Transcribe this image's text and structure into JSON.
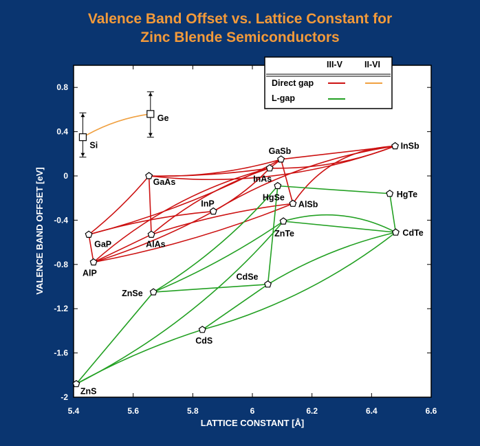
{
  "chart_data": {
    "type": "scatter",
    "title_line1": "Valence Band Offset vs. Lattice Constant for",
    "title_line2": "Zinc Blende Semiconductors",
    "xlabel": "LATTICE CONSTANT [Å]",
    "ylabel": "VALENCE BAND OFFSET [eV]",
    "xlim": [
      5.4,
      6.6
    ],
    "ylim": [
      -2,
      1.0
    ],
    "xticks": [
      5.4,
      5.6,
      5.8,
      6,
      6.2,
      6.4,
      6.6
    ],
    "xtick_labels": [
      "5.4",
      "5.6",
      "5.8",
      "6",
      "6.2",
      "6.4",
      "6.6"
    ],
    "yticks": [
      0.8,
      0.4,
      0,
      -0.4,
      -0.8,
      -1.2,
      -1.6,
      -2
    ],
    "ytick_labels": [
      "0.8",
      "0.4",
      "0",
      "-0.4",
      "-0.8",
      "-1.2",
      "-1.6",
      "-2"
    ],
    "legend": {
      "placement": "top-right",
      "col_headers": [
        "III-V",
        "II-VI"
      ],
      "rows": [
        {
          "label": "Direct gap",
          "colors": [
            "#cc1111",
            "#f0a040"
          ]
        },
        {
          "label": "L-gap",
          "colors": [
            "#22a022",
            null
          ]
        }
      ]
    },
    "colors": {
      "direct_iii_v": "#cc1111",
      "direct_ii_vi": "#f0a040",
      "l_gap": "#22a022"
    },
    "points": [
      {
        "name": "Si",
        "x": 5.431,
        "y": 0.35,
        "marker": "square",
        "error": [
          0.17,
          0.57
        ]
      },
      {
        "name": "Ge",
        "x": 5.658,
        "y": 0.56,
        "marker": "square",
        "error": [
          0.35,
          0.76
        ]
      },
      {
        "name": "GaAs",
        "x": 5.653,
        "y": 0.0
      },
      {
        "name": "GaP",
        "x": 5.451,
        "y": -0.53
      },
      {
        "name": "AlAs",
        "x": 5.661,
        "y": -0.53
      },
      {
        "name": "AlP",
        "x": 5.467,
        "y": -0.78
      },
      {
        "name": "InP",
        "x": 5.869,
        "y": -0.32
      },
      {
        "name": "InAs",
        "x": 6.058,
        "y": 0.07
      },
      {
        "name": "GaSb",
        "x": 6.096,
        "y": 0.15
      },
      {
        "name": "HgSe",
        "x": 6.085,
        "y": -0.09
      },
      {
        "name": "AlSb",
        "x": 6.136,
        "y": -0.25
      },
      {
        "name": "ZnTe",
        "x": 6.104,
        "y": -0.41
      },
      {
        "name": "InSb",
        "x": 6.479,
        "y": 0.27
      },
      {
        "name": "HgTe",
        "x": 6.461,
        "y": -0.16
      },
      {
        "name": "CdTe",
        "x": 6.481,
        "y": -0.51
      },
      {
        "name": "ZnSe",
        "x": 5.668,
        "y": -1.05
      },
      {
        "name": "CdSe",
        "x": 6.052,
        "y": -0.98
      },
      {
        "name": "CdS",
        "x": 5.832,
        "y": -1.39
      },
      {
        "name": "ZnS",
        "x": 5.409,
        "y": -1.88
      }
    ],
    "curves": [
      {
        "series": "II-VI direct",
        "color": "#f0a040",
        "from": "Si",
        "to": "Ge",
        "bend": -0.1
      },
      {
        "series": "III-V direct",
        "color": "#cc1111",
        "from": "GaP",
        "to": "GaAs",
        "bend": 0.05
      },
      {
        "series": "III-V direct",
        "color": "#cc1111",
        "from": "GaP",
        "to": "InP",
        "bend": -0.05
      },
      {
        "series": "III-V direct",
        "color": "#cc1111",
        "from": "GaP",
        "to": "GaSb",
        "bend": 0.06
      },
      {
        "series": "III-V direct",
        "color": "#cc1111",
        "from": "GaP",
        "to": "AlP",
        "bend": 0.0
      },
      {
        "series": "III-V direct",
        "color": "#cc1111",
        "from": "GaAs",
        "to": "AlAs",
        "bend": 0.0
      },
      {
        "series": "III-V direct",
        "color": "#cc1111",
        "from": "GaAs",
        "to": "GaSb",
        "bend": 0.08
      },
      {
        "series": "III-V direct",
        "color": "#cc1111",
        "from": "GaAs",
        "to": "InAs",
        "bend": 0.04
      },
      {
        "series": "III-V direct",
        "color": "#cc1111",
        "from": "GaAs",
        "to": "InSb",
        "bend": 0.12
      },
      {
        "series": "III-V direct",
        "color": "#cc1111",
        "from": "AlAs",
        "to": "InAs",
        "bend": -0.1
      },
      {
        "series": "III-V direct",
        "color": "#cc1111",
        "from": "AlAs",
        "to": "AlSb",
        "bend": -0.05
      },
      {
        "series": "III-V direct",
        "color": "#cc1111",
        "from": "AlAs",
        "to": "AlP",
        "bend": 0.0
      },
      {
        "series": "III-V direct",
        "color": "#cc1111",
        "from": "AlP",
        "to": "InP",
        "bend": 0.05
      },
      {
        "series": "III-V direct",
        "color": "#cc1111",
        "from": "AlP",
        "to": "AlSb",
        "bend": 0.05
      },
      {
        "series": "III-V direct",
        "color": "#cc1111",
        "from": "AlP",
        "to": "InAs",
        "bend": -0.12
      },
      {
        "series": "III-V direct",
        "color": "#cc1111",
        "from": "InP",
        "to": "InAs",
        "bend": 0.08
      },
      {
        "series": "III-V direct",
        "color": "#cc1111",
        "from": "InP",
        "to": "InSb",
        "bend": -0.1
      },
      {
        "series": "III-V direct",
        "color": "#cc1111",
        "from": "InAs",
        "to": "GaSb",
        "bend": 0.0
      },
      {
        "series": "III-V direct",
        "color": "#cc1111",
        "from": "InAs",
        "to": "InSb",
        "bend": 0.1
      },
      {
        "series": "III-V direct",
        "color": "#cc1111",
        "from": "GaSb",
        "to": "AlSb",
        "bend": 0.0
      },
      {
        "series": "III-V direct",
        "color": "#cc1111",
        "from": "GaSb",
        "to": "InSb",
        "bend": 0.0
      },
      {
        "series": "III-V direct",
        "color": "#cc1111",
        "from": "AlSb",
        "to": "InSb",
        "bend": -0.25
      },
      {
        "series": "L-gap",
        "color": "#22a022",
        "from": "ZnS",
        "to": "ZnSe",
        "bend": 0.0
      },
      {
        "series": "L-gap",
        "color": "#22a022",
        "from": "ZnS",
        "to": "CdS",
        "bend": -0.05
      },
      {
        "series": "L-gap",
        "color": "#22a022",
        "from": "ZnS",
        "to": "ZnTe",
        "bend": 0.1
      },
      {
        "series": "L-gap",
        "color": "#22a022",
        "from": "ZnSe",
        "to": "CdSe",
        "bend": 0.0
      },
      {
        "series": "L-gap",
        "color": "#22a022",
        "from": "ZnSe",
        "to": "ZnTe",
        "bend": 0.05
      },
      {
        "series": "L-gap",
        "color": "#22a022",
        "from": "ZnSe",
        "to": "HgSe",
        "bend": 0.08
      },
      {
        "series": "L-gap",
        "color": "#22a022",
        "from": "CdS",
        "to": "CdSe",
        "bend": 0.0
      },
      {
        "series": "L-gap",
        "color": "#22a022",
        "from": "CdS",
        "to": "CdTe",
        "bend": 0.1
      },
      {
        "series": "L-gap",
        "color": "#22a022",
        "from": "CdSe",
        "to": "HgSe",
        "bend": 0.0
      },
      {
        "series": "L-gap",
        "color": "#22a022",
        "from": "CdSe",
        "to": "CdTe",
        "bend": -0.08
      },
      {
        "series": "L-gap",
        "color": "#22a022",
        "from": "ZnTe",
        "to": "CdTe",
        "bend": 0.0
      },
      {
        "series": "L-gap",
        "color": "#22a022",
        "from": "HgSe",
        "to": "HgTe",
        "bend": 0.0
      },
      {
        "series": "L-gap",
        "color": "#22a022",
        "from": "HgTe",
        "to": "CdTe",
        "bend": 0.0
      },
      {
        "series": "L-gap",
        "color": "#22a022",
        "from": "ZnTe",
        "to": "CdTe",
        "bend": -0.2
      }
    ]
  }
}
